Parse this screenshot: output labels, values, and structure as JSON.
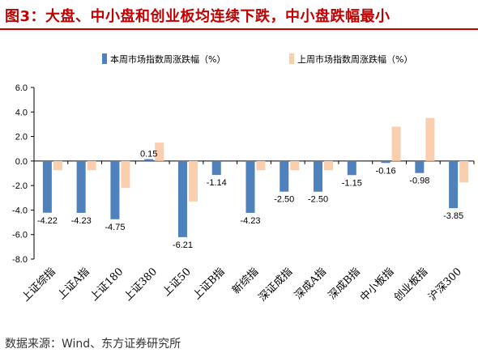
{
  "header": {
    "title": "图3：大盘、中小盘和创业板均连续下跌，中小盘跌幅最小"
  },
  "footer": {
    "source": "数据来源：Wind、东方证券研究所"
  },
  "colors": {
    "this_week": "#4f81bd",
    "last_week": "#fbcfae",
    "title": "#c00000"
  },
  "chart_data": {
    "type": "bar",
    "categories": [
      "上证综指",
      "上证A指",
      "上证180",
      "上证380",
      "上证50",
      "上证B指",
      "新综指",
      "深证成指",
      "深成A指",
      "深成B指",
      "中小板指",
      "创业板指",
      "沪深300"
    ],
    "series": [
      {
        "name": "本周市场指数周涨跌幅（%）",
        "values": [
          -4.22,
          -4.23,
          -4.75,
          0.15,
          -6.21,
          -1.14,
          -4.23,
          -2.5,
          -2.5,
          -1.15,
          -0.16,
          -0.98,
          -3.85
        ]
      },
      {
        "name": "上周市场指数周涨跌幅（%）",
        "values": [
          -0.75,
          -0.75,
          -2.2,
          1.5,
          -3.3,
          0,
          -0.75,
          -0.75,
          -0.75,
          0,
          2.8,
          3.5,
          -1.75
        ]
      }
    ],
    "data_labels": [
      "-4.22",
      "-4.23",
      "-4.75",
      "0.15",
      "-6.21",
      "-1.14",
      "-4.23",
      "-2.50",
      "-2.50",
      "-1.15",
      "-0.16",
      "-0.98",
      "-3.85"
    ],
    "yticks": [
      "6.0",
      "4.0",
      "2.0",
      "0.0",
      "-2.0",
      "-4.0",
      "-6.0",
      "-8.0"
    ],
    "ylim": [
      -8,
      6
    ],
    "legend": "top",
    "grid": false
  }
}
